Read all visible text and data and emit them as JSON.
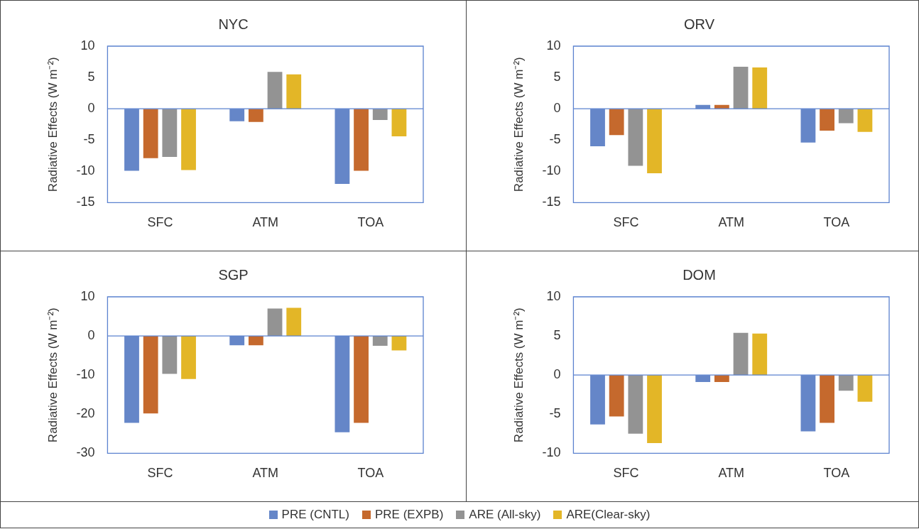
{
  "chart_data": [
    {
      "type": "bar",
      "title": "NYC",
      "ylabel": "Radiative Effects (W m⁻²)",
      "categories": [
        "SFC",
        "ATM",
        "TOA"
      ],
      "ylim": [
        -15,
        10
      ],
      "yticks": [
        -15,
        -10,
        -5,
        0,
        5,
        10
      ],
      "grid": false,
      "legend": "bottom",
      "ref_lines": [
        {
          "axis": "y",
          "value": 0,
          "color": "#5b82cf"
        }
      ],
      "series": [
        {
          "name": "PRE (CNTL)",
          "color": "#6586c8",
          "values": [
            -9.9,
            -2.0,
            -12.0
          ]
        },
        {
          "name": "PRE (EXPB)",
          "color": "#c5692d",
          "values": [
            -7.9,
            -2.1,
            -9.9
          ]
        },
        {
          "name": "ARE (All-sky)",
          "color": "#939393",
          "values": [
            -7.7,
            5.9,
            -1.8
          ]
        },
        {
          "name": "ARE(Clear-sky)",
          "color": "#e3b627",
          "values": [
            -9.8,
            5.5,
            -4.4
          ]
        }
      ]
    },
    {
      "type": "bar",
      "title": "ORV",
      "ylabel": "Radiative Effects (W m⁻²)",
      "categories": [
        "SFC",
        "ATM",
        "TOA"
      ],
      "ylim": [
        -15,
        10
      ],
      "yticks": [
        -15,
        -10,
        -5,
        0,
        5,
        10
      ],
      "grid": false,
      "ref_lines": [
        {
          "axis": "y",
          "value": 0,
          "color": "#5b82cf"
        }
      ],
      "series": [
        {
          "color": "#6586c8",
          "values": [
            -6.0,
            0.6,
            -5.4
          ]
        },
        {
          "color": "#c5692d",
          "values": [
            -4.2,
            0.6,
            -3.5
          ]
        },
        {
          "color": "#939393",
          "values": [
            -9.1,
            6.7,
            -2.3
          ]
        },
        {
          "color": "#e3b627",
          "values": [
            -10.3,
            6.6,
            -3.7
          ]
        }
      ]
    },
    {
      "type": "bar",
      "title": "SGP",
      "ylabel": "Radiative Effects (W m⁻²)",
      "categories": [
        "SFC",
        "ATM",
        "TOA"
      ],
      "ylim": [
        -30,
        10
      ],
      "yticks": [
        -30,
        -20,
        -10,
        0,
        10
      ],
      "grid": false,
      "ref_lines": [
        {
          "axis": "y",
          "value": 0,
          "color": "#5b82cf"
        }
      ],
      "series": [
        {
          "color": "#6586c8",
          "values": [
            -22.2,
            -2.4,
            -24.6
          ]
        },
        {
          "color": "#c5692d",
          "values": [
            -19.8,
            -2.4,
            -22.2
          ]
        },
        {
          "color": "#939393",
          "values": [
            -9.7,
            7.0,
            -2.5
          ]
        },
        {
          "color": "#e3b627",
          "values": [
            -11.0,
            7.2,
            -3.7
          ]
        }
      ]
    },
    {
      "type": "bar",
      "title": "DOM",
      "ylabel": "Radiative Effects (W m⁻²)",
      "categories": [
        "SFC",
        "ATM",
        "TOA"
      ],
      "ylim": [
        -10,
        10
      ],
      "yticks": [
        -10,
        -5,
        0,
        5,
        10
      ],
      "grid": false,
      "ref_lines": [
        {
          "axis": "y",
          "value": 0,
          "color": "#5b82cf"
        }
      ],
      "series": [
        {
          "color": "#6586c8",
          "values": [
            -6.3,
            -0.9,
            -7.2
          ]
        },
        {
          "color": "#c5692d",
          "values": [
            -5.3,
            -0.9,
            -6.1
          ]
        },
        {
          "color": "#939393",
          "values": [
            -7.5,
            5.4,
            -2.0
          ]
        },
        {
          "color": "#e3b627",
          "values": [
            -8.7,
            5.3,
            -3.4
          ]
        }
      ]
    }
  ]
}
